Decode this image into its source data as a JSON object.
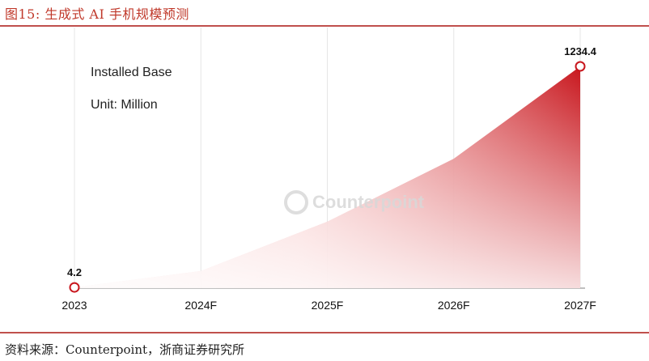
{
  "figure": {
    "title": "图15:  生成式 AI 手机规模预测",
    "source": "资料来源：Counterpoint，浙商证券研究所",
    "watermark": "Counterpoint"
  },
  "colors": {
    "accent": "#c0504d",
    "series": "#c8161d"
  },
  "chart_data": {
    "type": "area",
    "title": "",
    "annotations": [
      "Installed Base",
      "Unit: Million"
    ],
    "categories": [
      "2023",
      "2024F",
      "2025F",
      "2026F",
      "2027F"
    ],
    "series": [
      {
        "values": [
          4.2,
          95,
          370,
          720,
          1234.4
        ]
      }
    ],
    "data_labels": {
      "2023": "4.2",
      "2027F": "1234.4"
    },
    "ylim": [
      0,
      1234.4
    ],
    "xlabel": "",
    "ylabel": "",
    "grid": "vertical",
    "legend": "none"
  }
}
